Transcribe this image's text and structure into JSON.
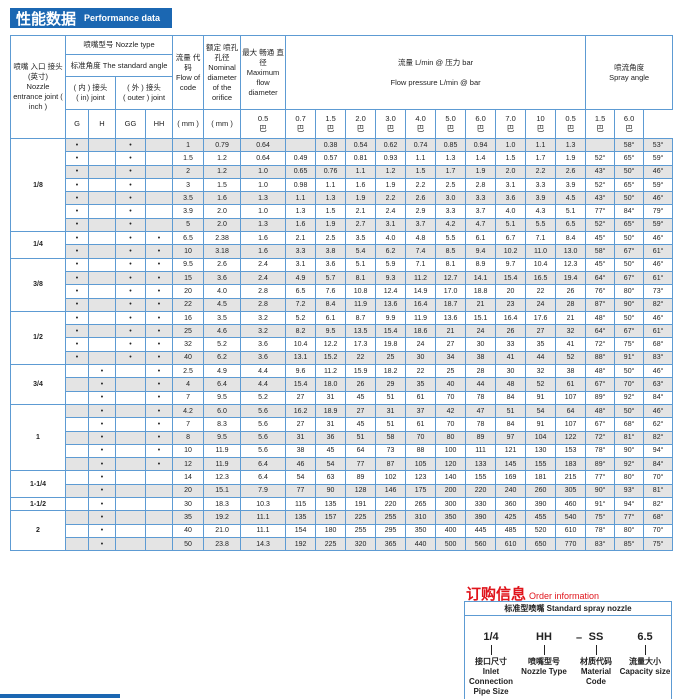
{
  "header": {
    "title_cn": "性能数据",
    "title_en": "Performance data"
  },
  "table": {
    "joint_label_cn": "喷嘴 入口 接头(英寸)",
    "joint_label_en": "Nozzle entrance joint ( inch )",
    "nozzle_type": "喷嘴型号  Nozzle type",
    "standard_angle": "标准角度 The standard angle",
    "in_joint_cn": "( 内 ) 接头",
    "in_joint_en": "( in) joint",
    "outer_joint_cn": "( 外 ) 接头",
    "outer_joint_en": "( outer ) joint",
    "type_cols": [
      "G",
      "H",
      "GG",
      "HH"
    ],
    "flow_code_cn": "流量 代码",
    "flow_code_en": "Flow of code",
    "nominal_cn": "额定 喷孔 孔径",
    "nominal_en": "Nominal diameter of the orifice",
    "max_cn": "最大 畅通 直径",
    "max_en": "Maximum flow diameter",
    "mm": "( mm )",
    "flow_cn": "流量 L/min @ 压力 bar",
    "flow_en": "Flow pressure L/min @ bar",
    "spray_cn": "喷流角度",
    "spray_en": "Spray angle",
    "bar_unit": "巴",
    "pressures": [
      "0.5",
      "0.7",
      "1.5",
      "2.0",
      "3.0",
      "4.0",
      "5.0",
      "6.0",
      "7.0",
      "10"
    ],
    "angle_pressures": [
      "0.5",
      "1.5",
      "6.0"
    ],
    "dot": "•",
    "groups": [
      {
        "joint": "1/8",
        "types": [
          1,
          0,
          1,
          0
        ],
        "rows": [
          {
            "code": "1",
            "nominal": "0.79",
            "max": "0.64",
            "flows": [
              "",
              "0.38",
              "0.54",
              "0.62",
              "0.74",
              "0.85",
              "0.94",
              "1.0",
              "1.1",
              "1.3"
            ],
            "angles": [
              "",
              "58°",
              "53°"
            ]
          },
          {
            "code": "1.5",
            "nominal": "1.2",
            "max": "0.64",
            "flows": [
              "0.49",
              "0.57",
              "0.81",
              "0.93",
              "1.1",
              "1.3",
              "1.4",
              "1.5",
              "1.7",
              "1.9"
            ],
            "angles": [
              "52°",
              "65°",
              "59°"
            ]
          },
          {
            "code": "2",
            "nominal": "1.2",
            "max": "1.0",
            "flows": [
              "0.65",
              "0.76",
              "1.1",
              "1.2",
              "1.5",
              "1.7",
              "1.9",
              "2.0",
              "2.2",
              "2.6"
            ],
            "angles": [
              "43°",
              "50°",
              "46°"
            ]
          },
          {
            "code": "3",
            "nominal": "1.5",
            "max": "1.0",
            "flows": [
              "0.98",
              "1.1",
              "1.6",
              "1.9",
              "2.2",
              "2.5",
              "2.8",
              "3.1",
              "3.3",
              "3.9"
            ],
            "angles": [
              "52°",
              "65°",
              "59°"
            ]
          },
          {
            "code": "3.5",
            "nominal": "1.6",
            "max": "1.3",
            "flows": [
              "1.1",
              "1.3",
              "1.9",
              "2.2",
              "2.6",
              "3.0",
              "3.3",
              "3.6",
              "3.9",
              "4.5"
            ],
            "angles": [
              "43°",
              "50°",
              "46°"
            ]
          },
          {
            "code": "3.9",
            "nominal": "2.0",
            "max": "1.0",
            "flows": [
              "1.3",
              "1.5",
              "2.1",
              "2.4",
              "2.9",
              "3.3",
              "3.7",
              "4.0",
              "4.3",
              "5.1"
            ],
            "angles": [
              "77°",
              "84°",
              "79°"
            ]
          },
          {
            "code": "5",
            "nominal": "2.0",
            "max": "1.3",
            "flows": [
              "1.6",
              "1.9",
              "2.7",
              "3.1",
              "3.7",
              "4.2",
              "4.7",
              "5.1",
              "5.5",
              "6.5"
            ],
            "angles": [
              "52°",
              "65°",
              "59°"
            ]
          }
        ]
      },
      {
        "joint": "1/4",
        "types": [
          1,
          0,
          1,
          1
        ],
        "rows": [
          {
            "code": "6.5",
            "nominal": "2.38",
            "max": "1.6",
            "flows": [
              "2.1",
              "2.5",
              "3.5",
              "4.0",
              "4.8",
              "5.5",
              "6.1",
              "6.7",
              "7.1",
              "8.4"
            ],
            "angles": [
              "45°",
              "50°",
              "46°"
            ]
          },
          {
            "code": "10",
            "nominal": "3.18",
            "max": "1.6",
            "flows": [
              "3.3",
              "3.8",
              "5.4",
              "6.2",
              "7.4",
              "8.5",
              "9.4",
              "10.2",
              "11.0",
              "13.0"
            ],
            "angles": [
              "58°",
              "67°",
              "61°"
            ]
          }
        ]
      },
      {
        "joint": "3/8",
        "types": [
          1,
          0,
          1,
          1
        ],
        "rows": [
          {
            "code": "9.5",
            "nominal": "2.6",
            "max": "2.4",
            "flows": [
              "3.1",
              "3.6",
              "5.1",
              "5.9",
              "7.1",
              "8.1",
              "8.9",
              "9.7",
              "10.4",
              "12.3"
            ],
            "angles": [
              "45°",
              "50°",
              "46°"
            ]
          },
          {
            "code": "15",
            "nominal": "3.6",
            "max": "2.4",
            "flows": [
              "4.9",
              "5.7",
              "8.1",
              "9.3",
              "11.2",
              "12.7",
              "14.1",
              "15.4",
              "16.5",
              "19.4"
            ],
            "angles": [
              "64°",
              "67°",
              "61°"
            ]
          },
          {
            "code": "20",
            "nominal": "4.0",
            "max": "2.8",
            "flows": [
              "6.5",
              "7.6",
              "10.8",
              "12.4",
              "14.9",
              "17.0",
              "18.8",
              "20",
              "22",
              "26"
            ],
            "angles": [
              "76°",
              "80°",
              "73°"
            ]
          },
          {
            "code": "22",
            "nominal": "4.5",
            "max": "2.8",
            "flows": [
              "7.2",
              "8.4",
              "11.9",
              "13.6",
              "16.4",
              "18.7",
              "21",
              "23",
              "24",
              "28"
            ],
            "angles": [
              "87°",
              "90°",
              "82°"
            ]
          }
        ]
      },
      {
        "joint": "1/2",
        "types": [
          1,
          0,
          1,
          1
        ],
        "rows": [
          {
            "code": "16",
            "nominal": "3.5",
            "max": "3.2",
            "flows": [
              "5.2",
              "6.1",
              "8.7",
              "9.9",
              "11.9",
              "13.6",
              "15.1",
              "16.4",
              "17.6",
              "21"
            ],
            "angles": [
              "48°",
              "50°",
              "46°"
            ]
          },
          {
            "code": "25",
            "nominal": "4.6",
            "max": "3.2",
            "flows": [
              "8.2",
              "9.5",
              "13.5",
              "15.4",
              "18.6",
              "21",
              "24",
              "26",
              "27",
              "32"
            ],
            "angles": [
              "64°",
              "67°",
              "61°"
            ]
          },
          {
            "code": "32",
            "nominal": "5.2",
            "max": "3.6",
            "flows": [
              "10.4",
              "12.2",
              "17.3",
              "19.8",
              "24",
              "27",
              "30",
              "33",
              "35",
              "41"
            ],
            "angles": [
              "72°",
              "75°",
              "68°"
            ]
          },
          {
            "code": "40",
            "nominal": "6.2",
            "max": "3.6",
            "flows": [
              "13.1",
              "15.2",
              "22",
              "25",
              "30",
              "34",
              "38",
              "41",
              "44",
              "52"
            ],
            "angles": [
              "88°",
              "91°",
              "83°"
            ]
          }
        ]
      },
      {
        "joint": "3/4",
        "types": [
          0,
          1,
          0,
          1
        ],
        "rows": [
          {
            "code": "2.5",
            "nominal": "4.9",
            "max": "4.4",
            "flows": [
              "9.6",
              "11.2",
              "15.9",
              "18.2",
              "22",
              "25",
              "28",
              "30",
              "32",
              "38"
            ],
            "angles": [
              "48°",
              "50°",
              "46°"
            ]
          },
          {
            "code": "4",
            "nominal": "6.4",
            "max": "4.4",
            "flows": [
              "15.4",
              "18.0",
              "26",
              "29",
              "35",
              "40",
              "44",
              "48",
              "52",
              "61"
            ],
            "angles": [
              "67°",
              "70°",
              "63°"
            ]
          },
          {
            "code": "7",
            "nominal": "9.5",
            "max": "5.2",
            "flows": [
              "27",
              "31",
              "45",
              "51",
              "61",
              "70",
              "78",
              "84",
              "91",
              "107"
            ],
            "angles": [
              "89°",
              "92°",
              "84°"
            ]
          }
        ]
      },
      {
        "joint": "1",
        "types": [
          0,
          1,
          0,
          1
        ],
        "rows": [
          {
            "code": "4.2",
            "nominal": "6.0",
            "max": "5.6",
            "flows": [
              "16.2",
              "18.9",
              "27",
              "31",
              "37",
              "42",
              "47",
              "51",
              "54",
              "64"
            ],
            "angles": [
              "48°",
              "50°",
              "46°"
            ]
          },
          {
            "code": "7",
            "nominal": "8.3",
            "max": "5.6",
            "flows": [
              "27",
              "31",
              "45",
              "51",
              "61",
              "70",
              "78",
              "84",
              "91",
              "107"
            ],
            "angles": [
              "67°",
              "68°",
              "62°"
            ]
          },
          {
            "code": "8",
            "nominal": "9.5",
            "max": "5.6",
            "flows": [
              "31",
              "36",
              "51",
              "58",
              "70",
              "80",
              "89",
              "97",
              "104",
              "122"
            ],
            "angles": [
              "72°",
              "81°",
              "82°"
            ]
          },
          {
            "code": "10",
            "nominal": "11.9",
            "max": "5.6",
            "flows": [
              "38",
              "45",
              "64",
              "73",
              "88",
              "100",
              "111",
              "121",
              "130",
              "153"
            ],
            "angles": [
              "78°",
              "90°",
              "94°"
            ]
          },
          {
            "code": "12",
            "nominal": "11.9",
            "max": "6.4",
            "flows": [
              "46",
              "54",
              "77",
              "87",
              "105",
              "120",
              "133",
              "145",
              "155",
              "183"
            ],
            "angles": [
              "89°",
              "92°",
              "84°"
            ]
          }
        ]
      },
      {
        "joint": "1-1/4",
        "types": [
          0,
          1,
          0,
          0
        ],
        "rows": [
          {
            "code": "14",
            "nominal": "12.3",
            "max": "6.4",
            "flows": [
              "54",
              "63",
              "89",
              "102",
              "123",
              "140",
              "155",
              "169",
              "181",
              "215"
            ],
            "angles": [
              "77°",
              "80°",
              "70°"
            ]
          },
          {
            "code": "20",
            "nominal": "15.1",
            "max": "7.9",
            "flows": [
              "77",
              "90",
              "128",
              "146",
              "175",
              "200",
              "220",
              "240",
              "260",
              "305"
            ],
            "angles": [
              "90°",
              "93°",
              "81°"
            ]
          }
        ]
      },
      {
        "joint": "1-1/2",
        "types": [
          0,
          1,
          0,
          0
        ],
        "rows": [
          {
            "code": "30",
            "nominal": "18.3",
            "max": "10.3",
            "flows": [
              "115",
              "135",
              "191",
              "220",
              "265",
              "300",
              "330",
              "360",
              "390",
              "460"
            ],
            "angles": [
              "91°",
              "94°",
              "82°"
            ]
          }
        ]
      },
      {
        "joint": "2",
        "types": [
          0,
          1,
          0,
          0
        ],
        "rows": [
          {
            "code": "35",
            "nominal": "19.2",
            "max": "11.1",
            "flows": [
              "135",
              "157",
              "225",
              "255",
              "310",
              "350",
              "390",
              "425",
              "455",
              "540"
            ],
            "angles": [
              "75°",
              "77°",
              "68°"
            ]
          },
          {
            "code": "40",
            "nominal": "21.0",
            "max": "11.1",
            "flows": [
              "154",
              "180",
              "255",
              "295",
              "350",
              "400",
              "445",
              "485",
              "520",
              "610"
            ],
            "angles": [
              "78°",
              "80°",
              "70°"
            ]
          },
          {
            "code": "50",
            "nominal": "23.8",
            "max": "14.3",
            "flows": [
              "192",
              "225",
              "320",
              "365",
              "440",
              "500",
              "560",
              "610",
              "650",
              "770"
            ],
            "angles": [
              "83°",
              "85°",
              "75°"
            ]
          }
        ]
      }
    ]
  },
  "order": {
    "title_cn": "订购信息",
    "title_en": "Order information",
    "box_title": "标准型喷嘴  Standard spray nozzle",
    "dash": "–",
    "parts": [
      {
        "code": "1/4",
        "cn": "接口尺寸",
        "en": "Inlet Connection Pipe Size"
      },
      {
        "code": "HH",
        "cn": "喷嘴型号",
        "en": "Nozzle Type"
      },
      {
        "code": "SS",
        "cn": "材质代码",
        "en": "Material Code"
      },
      {
        "code": "6.5",
        "cn": "流量大小",
        "en": "Capacity size"
      }
    ]
  },
  "colors": {
    "brand_blue": "#1b67b2",
    "border_blue": "#5d9bd3",
    "order_red": "#e0141b",
    "row_gray": "#e4e4e4"
  }
}
